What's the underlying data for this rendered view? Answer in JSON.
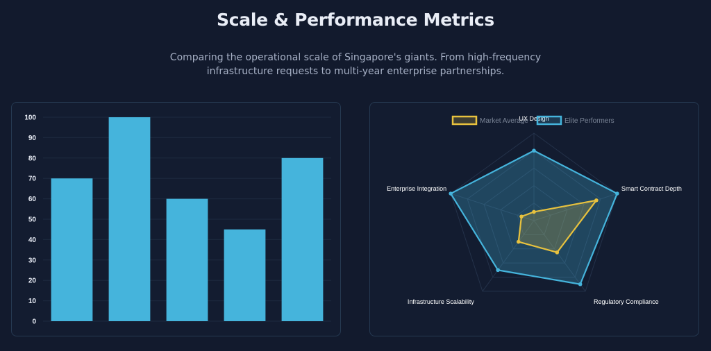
{
  "header": {
    "title": "Scale & Performance Metrics",
    "subtitle_line1": "Comparing the operational scale of Singapore's giants. From high-frequency",
    "subtitle_line2": "infrastructure requests to multi-year enterprise partnerships."
  },
  "chart_data": [
    {
      "type": "bar",
      "categories": [
        "",
        "",
        "",
        "",
        ""
      ],
      "values": [
        70,
        100,
        60,
        45,
        80
      ],
      "ylim": [
        0,
        100
      ],
      "yticks": [
        0,
        10,
        20,
        30,
        40,
        50,
        60,
        70,
        80,
        90,
        100
      ],
      "grid": true,
      "colors": {
        "bar": "#45b4dc",
        "grid": "#1e2a3f"
      }
    },
    {
      "type": "radar",
      "axes": [
        "UX Design",
        "Smart Contract Depth",
        "Regulatory Compliance",
        "Infrastructure Scalability",
        "Enterprise Integration"
      ],
      "rlim": [
        0,
        100
      ],
      "legend_position": "top",
      "series": [
        {
          "name": "Market Average",
          "values": [
            10,
            75,
            45,
            30,
            15
          ],
          "color": "#e8c23e"
        },
        {
          "name": "Elite Performers",
          "values": [
            80,
            100,
            90,
            70,
            100
          ],
          "color": "#45b4dc"
        }
      ]
    }
  ]
}
